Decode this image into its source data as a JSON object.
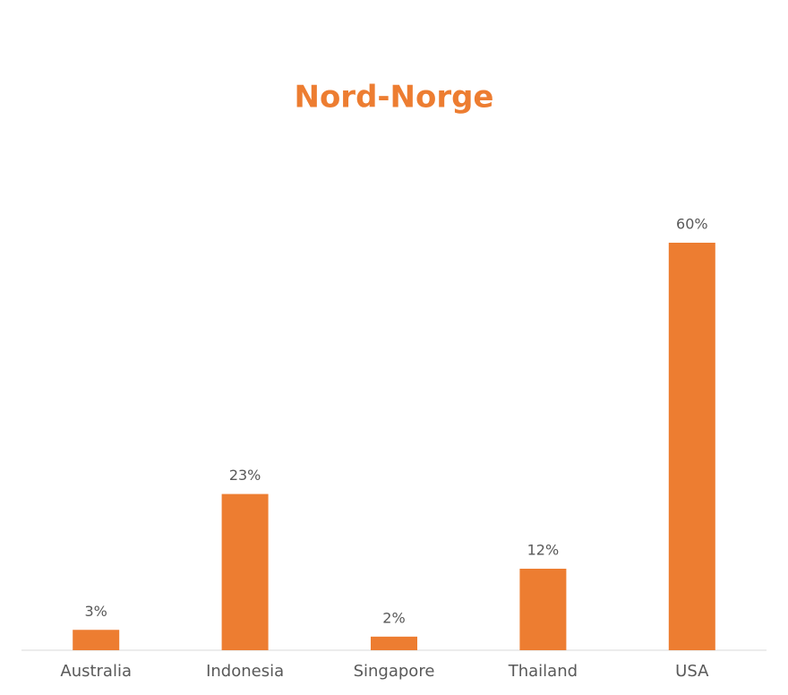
{
  "chart_data": {
    "type": "bar",
    "title": "Nord-Norge",
    "categories": [
      "Australia",
      "Indonesia",
      "Singapore",
      "Thailand",
      "USA"
    ],
    "values": [
      3,
      23,
      2,
      12,
      60
    ],
    "value_labels": [
      "3%",
      "23%",
      "2%",
      "12%",
      "60%"
    ],
    "color": "#ED7D31"
  }
}
